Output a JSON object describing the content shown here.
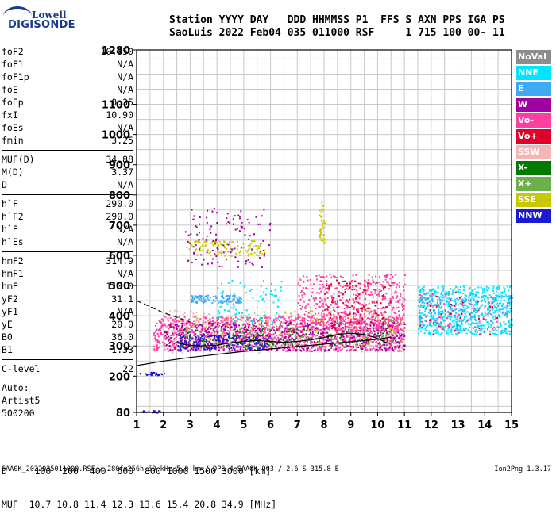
{
  "logo": {
    "line1": "Lowell",
    "line2": "DIGISONDE"
  },
  "header": {
    "row1": "Station YYYY DAY   DDD HHMMSS P1  FFS S AXN PPS IGA PS",
    "row2": "SaoLuis 2022 Feb04 035 011000 RSF     1 715 100 00- 11"
  },
  "params": [
    {
      "name": "foF2",
      "value": "10.350"
    },
    {
      "name": "foF1",
      "value": "N/A"
    },
    {
      "name": "foF1p",
      "value": "N/A"
    },
    {
      "name": "foE",
      "value": "N/A"
    },
    {
      "name": "foEp",
      "value": "0.35"
    },
    {
      "name": "fxI",
      "value": "10.90"
    },
    {
      "name": "foEs",
      "value": "N/A"
    },
    {
      "name": "fmin",
      "value": "3.25"
    },
    {
      "name": "MUF(D)",
      "value": "34.88"
    },
    {
      "name": "M(D)",
      "value": "3.37"
    },
    {
      "name": "D",
      "value": "N/A"
    },
    {
      "name": "h`F",
      "value": "290.0"
    },
    {
      "name": "h`F2",
      "value": "290.0"
    },
    {
      "name": "h`E",
      "value": "N/A"
    },
    {
      "name": "h`Es",
      "value": "N/A"
    },
    {
      "name": "hmF2",
      "value": "314.9"
    },
    {
      "name": "hmF1",
      "value": "N/A"
    },
    {
      "name": "hmE",
      "value": "110.0"
    },
    {
      "name": "yF2",
      "value": "31.1"
    },
    {
      "name": "yF1",
      "value": "N/A"
    },
    {
      "name": "yE",
      "value": "20.0"
    },
    {
      "name": "B0",
      "value": "36.0"
    },
    {
      "name": "B1",
      "value": "1.33"
    },
    {
      "name": "C-level",
      "value": "22"
    }
  ],
  "auto": {
    "line1": "Auto:",
    "line2": "Artist5",
    "line3": "500200"
  },
  "legend": [
    {
      "label": "NoVal",
      "color": "#8c8c8c"
    },
    {
      "label": "NNE",
      "color": "#00e5ff"
    },
    {
      "label": "E",
      "color": "#3fa9f5"
    },
    {
      "label": "W",
      "color": "#a000a0"
    },
    {
      "label": "Vo-",
      "color": "#ff3fa0"
    },
    {
      "label": "Vo+",
      "color": "#e0002a"
    },
    {
      "label": "SSW",
      "color": "#f5b5b5"
    },
    {
      "label": "X-",
      "color": "#007a00"
    },
    {
      "label": "X+",
      "color": "#6ab04c"
    },
    {
      "label": "SSE",
      "color": "#c8c800"
    },
    {
      "label": "NNW",
      "color": "#1a1ad0"
    }
  ],
  "muf": {
    "row1": "D     100  200  400  600  800 1000 1500 3000 [km]",
    "row2": "MUF  10.7 10.8 11.4 12.3 13.6 15.4 20.8 34.9 [MHz]"
  },
  "footer": {
    "left": "SAA0K_2022035011000.RSF / 280fx256h 50 kHz 5.0 km / DPS-4 SAA0K 903 / 2.6 S 315.8 E",
    "right": "Ion2Png 1.3.17"
  },
  "chart_data": {
    "type": "scatter",
    "xlabel": "",
    "ylabel": "",
    "xlim": [
      1,
      15
    ],
    "ylim": [
      80,
      1280
    ],
    "x_ticks": [
      1,
      2,
      3,
      4,
      5,
      6,
      7,
      8,
      9,
      10,
      11,
      12,
      13,
      14,
      15
    ],
    "y_ticks": [
      80,
      200,
      300,
      400,
      500,
      600,
      700,
      800,
      900,
      1000,
      1100,
      1280
    ],
    "grid": true,
    "clusters": [
      {
        "x": [
          1.1,
          1.9
        ],
        "y": [
          80,
          88
        ],
        "color": "#1a1ad0",
        "density": 20
      },
      {
        "x": [
          1.1,
          2.1
        ],
        "y": [
          205,
          215
        ],
        "color": "#1a1ad0",
        "density": 25
      },
      {
        "x": [
          1.6,
          11.0
        ],
        "y": [
          285,
          400
        ],
        "color": "#ff3fa0",
        "density": 1400
      },
      {
        "x": [
          2.0,
          11.0
        ],
        "y": [
          285,
          380
        ],
        "color": "#a000a0",
        "density": 700
      },
      {
        "x": [
          2.5,
          6.0
        ],
        "y": [
          290,
          340
        ],
        "color": "#1a1ad0",
        "density": 250
      },
      {
        "x": [
          2.5,
          10.5
        ],
        "y": [
          300,
          360
        ],
        "color": "#007a00",
        "density": 120
      },
      {
        "x": [
          2.0,
          11.0
        ],
        "y": [
          280,
          420
        ],
        "color": "#f5b5b5",
        "density": 250
      },
      {
        "x": [
          2.8,
          11.0
        ],
        "y": [
          300,
          420
        ],
        "color": "#c8c800",
        "density": 80
      },
      {
        "x": [
          2.8,
          11.0
        ],
        "y": [
          300,
          400
        ],
        "color": "#6ab04c",
        "density": 90
      },
      {
        "x": [
          3.0,
          4.9
        ],
        "y": [
          445,
          470
        ],
        "color": "#3fa9f5",
        "density": 120
      },
      {
        "x": [
          2.8,
          5.8
        ],
        "y": [
          600,
          650
        ],
        "color": "#c8c800",
        "density": 120
      },
      {
        "x": [
          2.8,
          6.0
        ],
        "y": [
          560,
          760
        ],
        "color": "#a000a0",
        "density": 120
      },
      {
        "x": [
          4.0,
          6.5
        ],
        "y": [
          380,
          520
        ],
        "color": "#00e5ff",
        "density": 90
      },
      {
        "x": [
          7.8,
          8.0
        ],
        "y": [
          640,
          780
        ],
        "color": "#c8c800",
        "density": 40
      },
      {
        "x": [
          7.0,
          11.0
        ],
        "y": [
          350,
          540
        ],
        "color": "#ff3fa0",
        "density": 500
      },
      {
        "x": [
          8.0,
          10.5
        ],
        "y": [
          350,
          520
        ],
        "color": "#e0002a",
        "density": 140
      },
      {
        "x": [
          11.5,
          15.0
        ],
        "y": [
          340,
          500
        ],
        "color": "#00e5ff",
        "density": 650
      },
      {
        "x": [
          11.5,
          15.0
        ],
        "y": [
          350,
          480
        ],
        "color": "#3fa9f5",
        "density": 200
      },
      {
        "x": [
          11.5,
          14.5
        ],
        "y": [
          340,
          480
        ],
        "color": "#ff3fa0",
        "density": 60
      },
      {
        "x": [
          11.5,
          14.5
        ],
        "y": [
          340,
          480
        ],
        "color": "#e0002a",
        "density": 40
      }
    ],
    "curves": [
      {
        "style": "solid",
        "points": [
          [
            1.0,
            235
          ],
          [
            2.0,
            250
          ],
          [
            3.0,
            262
          ],
          [
            4.0,
            272
          ],
          [
            5.0,
            282
          ],
          [
            6.0,
            290
          ],
          [
            7.0,
            298
          ],
          [
            8.0,
            306
          ],
          [
            9.0,
            314
          ],
          [
            10.0,
            322
          ],
          [
            10.5,
            330
          ]
        ]
      },
      {
        "style": "solid",
        "points": [
          [
            2.5,
            310
          ],
          [
            3.0,
            302
          ],
          [
            3.5,
            300
          ],
          [
            4.0,
            303
          ],
          [
            4.5,
            310
          ],
          [
            5.0,
            315
          ],
          [
            5.5,
            318
          ],
          [
            6.0,
            315
          ],
          [
            6.5,
            312
          ],
          [
            7.0,
            315
          ],
          [
            7.5,
            320
          ],
          [
            8.0,
            328
          ],
          [
            8.5,
            338
          ],
          [
            9.0,
            342
          ],
          [
            9.5,
            338
          ],
          [
            10.0,
            325
          ],
          [
            10.35,
            310
          ]
        ]
      },
      {
        "style": "dashed",
        "points": [
          [
            1.0,
            450
          ],
          [
            1.5,
            430
          ],
          [
            2.0,
            410
          ],
          [
            2.5,
            395
          ],
          [
            3.0,
            380
          ]
        ]
      }
    ]
  }
}
